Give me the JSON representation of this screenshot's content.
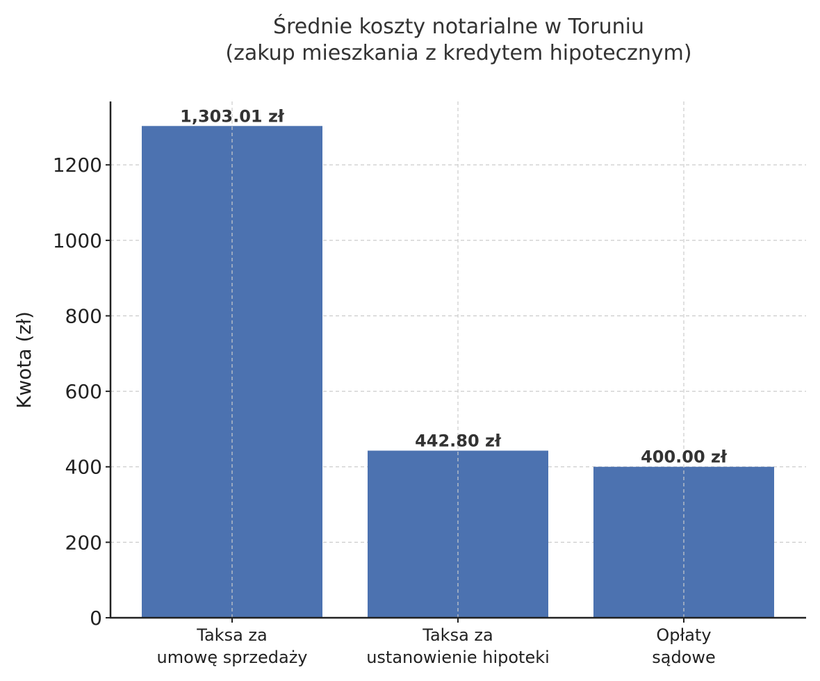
{
  "chart_data": {
    "type": "bar",
    "title": "Średnie koszty notarialne w Toruniu",
    "subtitle": "(zakup mieszkania z kredytem hipotecznym)",
    "xlabel": "",
    "ylabel": "Kwota (zł)",
    "categories": [
      [
        "Taksa za",
        "umowę sprzedaży"
      ],
      [
        "Taksa za",
        "ustanowienie hipoteki"
      ],
      [
        "Opłaty",
        "sądowe"
      ]
    ],
    "category_labels": [
      "Taksa za umowę sprzedaży",
      "Taksa za ustanowienie hipoteki",
      "Opłaty sądowe"
    ],
    "values": [
      1303.01,
      442.8,
      400.0
    ],
    "value_labels": [
      "1,303.01 zł",
      "442.80 zł",
      "400.00 zł"
    ],
    "ylim": [
      0,
      1368
    ],
    "yticks": [
      0,
      200,
      400,
      600,
      800,
      1000,
      1200
    ],
    "grid": true,
    "legend": null,
    "bar_color": "#4c72b0"
  }
}
